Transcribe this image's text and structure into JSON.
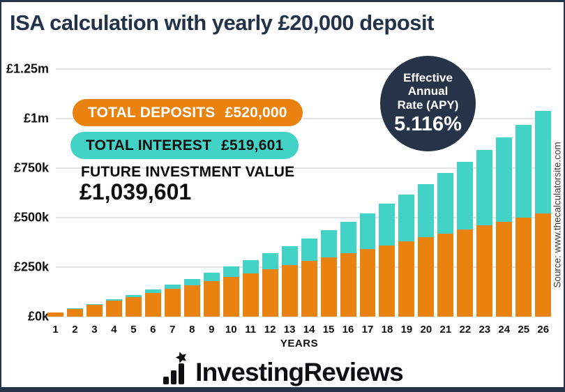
{
  "title": "ISA calculation with yearly £20,000 deposit",
  "badges": {
    "deposits_label": "TOTAL DEPOSITS",
    "deposits_value": "£520,000",
    "interest_label": "TOTAL INTEREST",
    "interest_value": "£519,601",
    "future_label": "FUTURE INVESTMENT VALUE",
    "future_value": "£1,039,601"
  },
  "apy_badge": {
    "line1": "Effective",
    "line2": "Annual",
    "line3": "Rate (APY)",
    "value": "5.116%"
  },
  "source_text": "Source: www.thecalculatorsite.com",
  "logo_text": "InvestingReviews",
  "colors": {
    "deposit_orange": "#E9820F",
    "interest_teal": "#42D2C6",
    "navy": "#263349",
    "gridline": "#e2e2e2"
  },
  "chart_data": {
    "type": "bar",
    "stacked": true,
    "title": "ISA calculation with yearly £20,000 deposit",
    "xlabel": "YEARS",
    "ylabel": "",
    "ylim": [
      0,
      1250000
    ],
    "grid": true,
    "legend_position": "none",
    "y_ticks": [
      {
        "label": "£0k",
        "value": 0
      },
      {
        "label": "£250k",
        "value": 250000
      },
      {
        "label": "£500k",
        "value": 500000
      },
      {
        "label": "£750k",
        "value": 750000
      },
      {
        "label": "£1m",
        "value": 1000000
      },
      {
        "label": "£1.25m",
        "value": 1250000
      }
    ],
    "categories": [
      1,
      2,
      3,
      4,
      5,
      6,
      7,
      8,
      9,
      10,
      11,
      12,
      13,
      14,
      15,
      16,
      17,
      18,
      19,
      20,
      21,
      22,
      23,
      24,
      25,
      26
    ],
    "series": [
      {
        "name": "Total deposits",
        "color": "#E9820F",
        "values": [
          20000,
          40000,
          60000,
          80000,
          100000,
          120000,
          140000,
          160000,
          180000,
          200000,
          220000,
          240000,
          260000,
          280000,
          300000,
          320000,
          340000,
          360000,
          380000,
          400000,
          420000,
          440000,
          460000,
          480000,
          500000,
          520000
        ]
      },
      {
        "name": "Total interest",
        "color": "#42D2C6",
        "values": [
          0,
          1023,
          3122,
          6351,
          10769,
          16436,
          23416,
          31777,
          41587,
          52924,
          65864,
          80489,
          96885,
          115143,
          135359,
          157632,
          182067,
          208775,
          237873,
          269484,
          303734,
          340760,
          380704,
          423715,
          469949,
          519601
        ]
      }
    ]
  }
}
